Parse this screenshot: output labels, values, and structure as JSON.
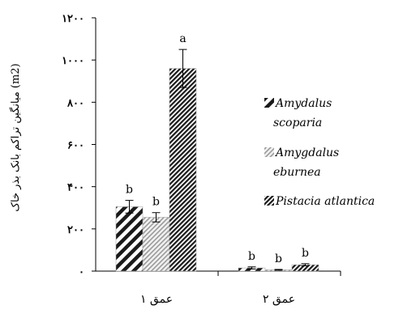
{
  "chart_data": {
    "type": "bar",
    "ylabel": "میانگین تراکم بانک بذر خاک (m2)",
    "ylim": [
      0,
      1200
    ],
    "ytick_values": [
      0,
      200,
      400,
      600,
      800,
      1000,
      1200
    ],
    "ytick_labels": [
      "۰",
      "۲۰۰",
      "۴۰۰",
      "۶۰۰",
      "۸۰۰",
      "۱۰۰۰",
      "۱۲۰۰"
    ],
    "categories": [
      "عمق ۱",
      "عمق ۲"
    ],
    "series": [
      {
        "name": "Amydalus scoparia",
        "values": [
          305,
          15
        ],
        "errors": [
          30,
          5
        ],
        "labels": [
          "b",
          "b"
        ],
        "pattern": "wide-diagonal"
      },
      {
        "name": "Amygdalus eburnea",
        "values": [
          255,
          6
        ],
        "errors": [
          22,
          2
        ],
        "labels": [
          "b",
          "b"
        ],
        "pattern": "light-diagonal"
      },
      {
        "name": "Pistacia atlantica",
        "values": [
          960,
          30
        ],
        "errors": [
          90,
          5
        ],
        "labels": [
          "a",
          "b"
        ],
        "pattern": "dense-diagonal"
      }
    ],
    "legend_labels": [
      [
        "Amydalus",
        "scoparia"
      ],
      [
        "Amygdalus",
        "eburnea"
      ],
      [
        "Pistacia atlantica"
      ]
    ],
    "legend": "right",
    "grid": false
  }
}
